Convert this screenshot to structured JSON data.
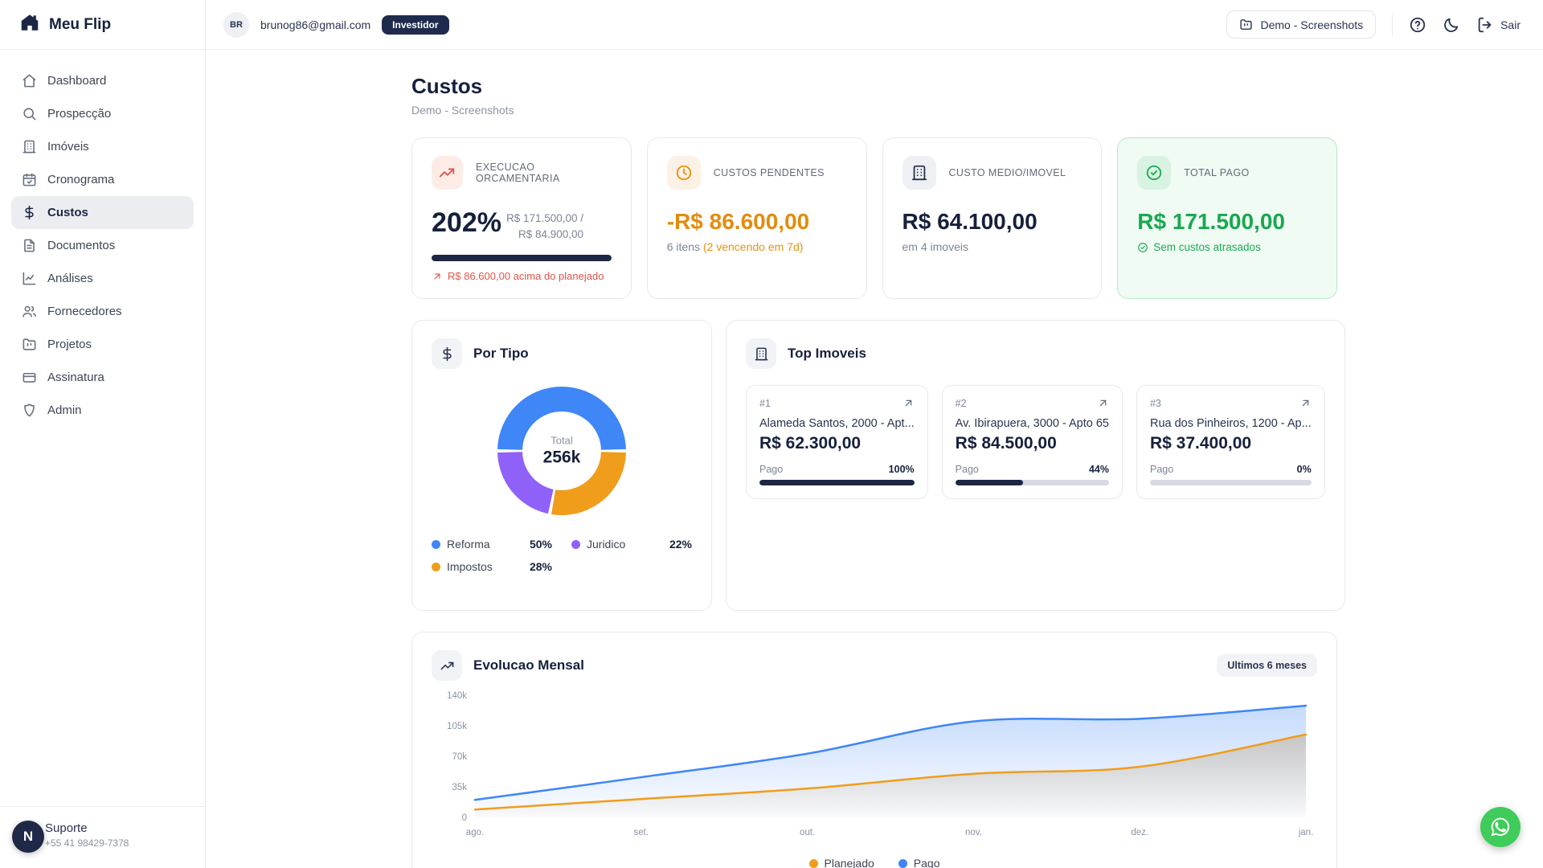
{
  "brand": {
    "name": "Meu Flip"
  },
  "topbar": {
    "user_initials": "BR",
    "user_email": "brunog86@gmail.com",
    "role_badge": "Investidor",
    "project_button": "Demo - Screenshots",
    "signout_label": "Sair"
  },
  "sidebar": {
    "items": [
      {
        "label": "Dashboard",
        "active": false
      },
      {
        "label": "Prospecção",
        "active": false
      },
      {
        "label": "Imóveis",
        "active": false
      },
      {
        "label": "Cronograma",
        "active": false
      },
      {
        "label": "Custos",
        "active": true
      },
      {
        "label": "Documentos",
        "active": false
      },
      {
        "label": "Análises",
        "active": false
      },
      {
        "label": "Fornecedores",
        "active": false
      },
      {
        "label": "Projetos",
        "active": false
      },
      {
        "label": "Assinatura",
        "active": false
      },
      {
        "label": "Admin",
        "active": false
      }
    ],
    "support": {
      "title": "Suporte",
      "phone": "+55 41 98429-7378"
    }
  },
  "page": {
    "title": "Custos",
    "subtitle": "Demo - Screenshots"
  },
  "stats": [
    {
      "label": "EXECUCAO ORCAMENTARIA",
      "value": "202%",
      "ratio_line1": "R$ 171.500,00 /",
      "ratio_line2": "R$ 84.900,00",
      "progress": 100,
      "footnote": "R$ 86.600,00 acima do planejado"
    },
    {
      "label": "CUSTOS PENDENTES",
      "value": "-R$ 86.600,00",
      "detail_plain": "6 itens",
      "detail_highlight": "(2 vencendo em 7d)"
    },
    {
      "label": "CUSTO MEDIO/IMOVEL",
      "value": "R$ 64.100,00",
      "detail": "em 4 imoveis"
    },
    {
      "label": "TOTAL PAGO",
      "value": "R$ 171.500,00",
      "detail": "Sem custos atrasados"
    }
  ],
  "top_imoveis": {
    "title": "Top Imoveis",
    "paid_label": "Pago",
    "items": [
      {
        "rank": "#1",
        "address": "Alameda Santos, 2000 - Apt...",
        "value": "R$ 62.300,00",
        "pct_label": "100%",
        "pct": 100
      },
      {
        "rank": "#2",
        "address": "Av. Ibirapuera, 3000 - Apto 65",
        "value": "R$ 84.500,00",
        "pct_label": "44%",
        "pct": 44
      },
      {
        "rank": "#3",
        "address": "Rua dos Pinheiros, 1200 - Ap...",
        "value": "R$ 37.400,00",
        "pct_label": "0%",
        "pct": 0
      }
    ]
  },
  "chart_data": [
    {
      "type": "pie",
      "title": "Por Tipo",
      "donut": true,
      "center_label": "Total",
      "center_value": "256k",
      "start_angle_deg": 270,
      "slices": [
        {
          "label": "Reforma",
          "pct": 50,
          "pct_label": "50%",
          "color": "#3f86f6"
        },
        {
          "label": "Impostos",
          "pct": 28,
          "pct_label": "28%",
          "color": "#f09d1b"
        },
        {
          "label": "Juridico",
          "pct": 22,
          "pct_label": "22%",
          "color": "#9061f9"
        }
      ],
      "legend_position": "bottom"
    },
    {
      "type": "area",
      "title": "Evolucao Mensal",
      "period_badge": "Ultimos 6 meses",
      "x": [
        "ago.",
        "set.",
        "out.",
        "nov.",
        "dez.",
        "jan."
      ],
      "series": [
        {
          "name": "Planejado",
          "color": "#f09d1b",
          "area_rgb": "170,130,70",
          "values": [
            9000,
            21000,
            33000,
            50000,
            58000,
            95000
          ]
        },
        {
          "name": "Pago",
          "color": "#3f86f6",
          "area_rgb": "63,134,246",
          "values": [
            20000,
            46000,
            73000,
            110000,
            113000,
            128000
          ]
        }
      ],
      "ylim": [
        0,
        140000
      ],
      "yticks": [
        {
          "value": 0,
          "label": "0"
        },
        {
          "value": 35000,
          "label": "35k"
        },
        {
          "value": 70000,
          "label": "70k"
        },
        {
          "value": 105000,
          "label": "105k"
        },
        {
          "value": 140000,
          "label": "140k"
        }
      ],
      "legend_position": "bottom",
      "grid": false
    }
  ]
}
